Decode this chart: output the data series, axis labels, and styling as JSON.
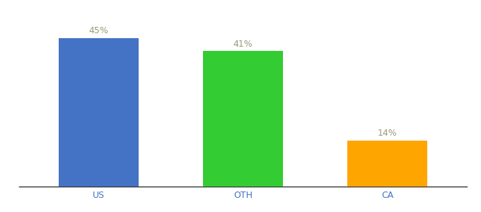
{
  "categories": [
    "US",
    "OTH",
    "CA"
  ],
  "values": [
    45,
    41,
    14
  ],
  "bar_colors": [
    "#4472C4",
    "#33CC33",
    "#FFA500"
  ],
  "label_color": "#999977",
  "label_fontsize": 9,
  "tick_fontsize": 9,
  "tick_color": "#4472C4",
  "ylim": [
    0,
    52
  ],
  "background_color": "#ffffff",
  "bar_width": 0.55
}
